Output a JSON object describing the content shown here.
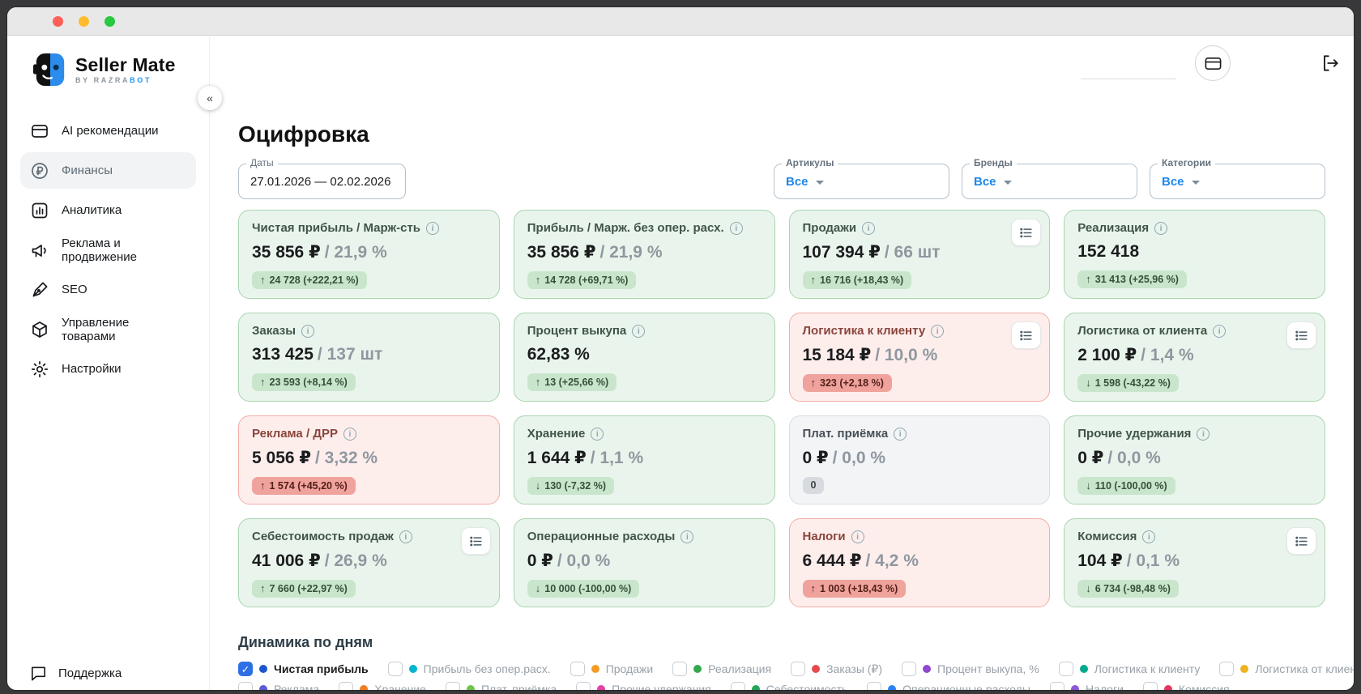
{
  "sidebar": {
    "logo_title": "Seller Mate",
    "logo_subtitle_gray": "BY RAZRA",
    "logo_subtitle_blue": "BOT",
    "collapse_glyph": "«",
    "items": [
      {
        "label": "AI рекомендации",
        "icon": "card-icon",
        "active": false
      },
      {
        "label": "Финансы",
        "icon": "ruble-circle-icon",
        "active": true
      },
      {
        "label": "Аналитика",
        "icon": "bar-chart-icon",
        "active": false
      },
      {
        "label": "Реклама и продвижение",
        "icon": "megaphone-icon",
        "active": false
      },
      {
        "label": "SEO",
        "icon": "pen-icon",
        "active": false
      },
      {
        "label": "Управление товарами",
        "icon": "package-icon",
        "active": false
      },
      {
        "label": "Настройки",
        "icon": "gear-icon",
        "active": false
      }
    ],
    "support_label": "Поддержка"
  },
  "topbar": {
    "icons": [
      "credit-card-icon",
      "logout-icon"
    ]
  },
  "page": {
    "title": "Оцифровка",
    "filters": {
      "date": {
        "label": "Даты",
        "value": "27.01.2026 — 02.02.2026"
      },
      "selects": [
        {
          "label": "Артикулы",
          "value": "Все"
        },
        {
          "label": "Бренды",
          "value": "Все"
        },
        {
          "label": "Категории",
          "value": "Все"
        }
      ]
    },
    "cards": [
      {
        "title": "Чистая прибыль / Марж-сть",
        "value": "35 856 ₽",
        "value_secondary": "/ 21,9 %",
        "badge_arrow": "↑",
        "badge_text": "24 728 (+222,21 %)",
        "tone": "green",
        "has_details": false
      },
      {
        "title": "Прибыль / Марж. без опер. расх.",
        "value": "35 856 ₽",
        "value_secondary": "/ 21,9 %",
        "badge_arrow": "↑",
        "badge_text": "14 728 (+69,71 %)",
        "tone": "green",
        "has_details": false
      },
      {
        "title": "Продажи",
        "value": "107 394 ₽",
        "value_secondary": "/ 66 шт",
        "badge_arrow": "↑",
        "badge_text": "16 716 (+18,43 %)",
        "tone": "green",
        "has_details": true
      },
      {
        "title": "Реализация",
        "value": "152 418",
        "value_secondary": "",
        "badge_arrow": "↑",
        "badge_text": "31 413 (+25,96 %)",
        "tone": "green",
        "has_details": false
      },
      {
        "title": "Заказы",
        "value": "313 425",
        "value_secondary": "/ 137 шт",
        "badge_arrow": "↑",
        "badge_text": "23 593 (+8,14 %)",
        "tone": "green",
        "has_details": false
      },
      {
        "title": "Процент выкупа",
        "value": "62,83 %",
        "value_secondary": "",
        "badge_arrow": "↑",
        "badge_text": "13 (+25,66 %)",
        "tone": "green",
        "has_details": false
      },
      {
        "title": "Логистика к клиенту",
        "value": "15 184 ₽",
        "value_secondary": "/ 10,0 %",
        "badge_arrow": "↑",
        "badge_text": "323 (+2,18 %)",
        "tone": "red",
        "has_details": true
      },
      {
        "title": "Логистика от клиента",
        "value": "2 100 ₽",
        "value_secondary": "/ 1,4 %",
        "badge_arrow": "↓",
        "badge_text": "1 598 (-43,22 %)",
        "tone": "green",
        "has_details": true
      },
      {
        "title": "Реклама / ДРР",
        "value": "5 056 ₽",
        "value_secondary": "/ 3,32 %",
        "badge_arrow": "↑",
        "badge_text": "1 574 (+45,20 %)",
        "tone": "red",
        "has_details": false
      },
      {
        "title": "Хранение",
        "value": "1 644 ₽",
        "value_secondary": "/ 1,1 %",
        "badge_arrow": "↓",
        "badge_text": "130 (-7,32 %)",
        "tone": "green",
        "has_details": false
      },
      {
        "title": "Плат. приёмка",
        "value": "0 ₽",
        "value_secondary": "/ 0,0 %",
        "badge_arrow": "",
        "badge_text": "0",
        "tone": "gray",
        "has_details": false
      },
      {
        "title": "Прочие удержания",
        "value": "0 ₽",
        "value_secondary": "/ 0,0 %",
        "badge_arrow": "↓",
        "badge_text": "110 (-100,00 %)",
        "tone": "green",
        "has_details": false
      },
      {
        "title": "Себестоимость продаж",
        "value": "41 006 ₽",
        "value_secondary": "/ 26,9 %",
        "badge_arrow": "↑",
        "badge_text": "7 660 (+22,97 %)",
        "tone": "green",
        "has_details": true
      },
      {
        "title": "Операционные расходы",
        "value": "0 ₽",
        "value_secondary": "/ 0,0 %",
        "badge_arrow": "↓",
        "badge_text": "10 000 (-100,00 %)",
        "tone": "green",
        "has_details": false
      },
      {
        "title": "Налоги",
        "value": "6 444 ₽",
        "value_secondary": "/ 4,2 %",
        "badge_arrow": "↑",
        "badge_text": "1 003 (+18,43 %)",
        "tone": "red",
        "has_details": false
      },
      {
        "title": "Комиссия",
        "value": "104 ₽",
        "value_secondary": "/ 0,1 %",
        "badge_arrow": "↓",
        "badge_text": "6 734 (-98,48 %)",
        "tone": "green",
        "has_details": true
      }
    ],
    "dynamics": {
      "title": "Динамика по дням",
      "check_glyph": "✓",
      "legend_row1": [
        {
          "label": "Чистая прибыль",
          "color": "#1e56cf",
          "checked": true
        },
        {
          "label": "Прибыль без опер.расх.",
          "color": "#00b5cc",
          "checked": false
        },
        {
          "label": "Продажи",
          "color": "#f59a23",
          "checked": false
        },
        {
          "label": "Реализация",
          "color": "#33a94e",
          "checked": false
        },
        {
          "label": "Заказы (₽)",
          "color": "#e54b4b",
          "checked": false
        },
        {
          "label": "Процент выкупа, %",
          "color": "#9147cf",
          "checked": false
        },
        {
          "label": "Логистика к клиенту",
          "color": "#00a98c",
          "checked": false
        },
        {
          "label": "Логистика от клиента",
          "color": "#ecb21f",
          "checked": false
        }
      ],
      "legend_row2": [
        {
          "label": "Реклама",
          "color": "#5e5bd8",
          "checked": false
        },
        {
          "label": "Хранение",
          "color": "#f07c1f",
          "checked": false
        },
        {
          "label": "Плат. приёмка",
          "color": "#6fc24a",
          "checked": false
        },
        {
          "label": "Прочие удержания",
          "color": "#e43fa8",
          "checked": false
        },
        {
          "label": "Себестоимость",
          "color": "#23a55a",
          "checked": false
        },
        {
          "label": "Операционные расходы",
          "color": "#2f80f5",
          "checked": false
        },
        {
          "label": "Налоги",
          "color": "#8a57d9",
          "checked": false
        },
        {
          "label": "Комиссия",
          "color": "#e8365f",
          "checked": false
        }
      ]
    }
  },
  "colors": {
    "accent_blue": "#1f87e8",
    "card_green_bg": "#e9f5ec",
    "card_red_bg": "#fdeeec",
    "card_gray_bg": "#f2f4f6",
    "badge_green_bg": "#c9e6cc",
    "badge_red_bg": "#efa39c",
    "checked_checkbox": "#2f6fe4"
  }
}
